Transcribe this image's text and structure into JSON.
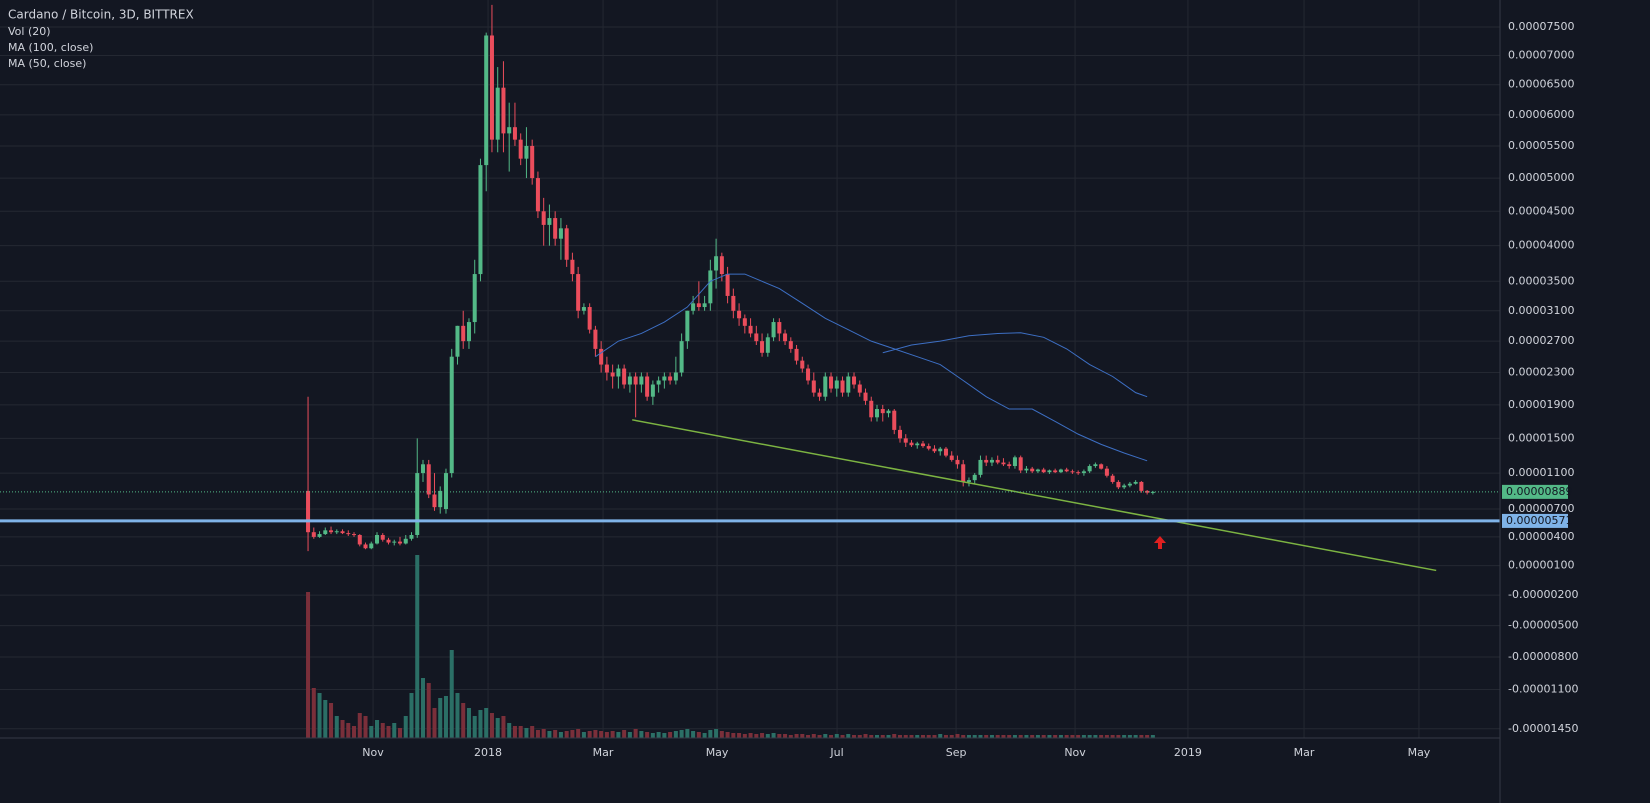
{
  "chart_data": {
    "type": "candlestick",
    "title": "Cardano / Bitcoin, 3D, BITTREX",
    "volume_label": "Vol (20)",
    "up_color": "#53b987",
    "down_color": "#eb4d5c",
    "volume_up_color": "#2b6f66",
    "volume_down_color": "#7a2f3a",
    "grid": true,
    "xlim": [
      -53.6,
      207.4
    ],
    "xticks": [
      {
        "value": 11.31,
        "label": "Nov"
      },
      {
        "value": 31.32,
        "label": "2018"
      },
      {
        "value": 51.33,
        "label": "Mar"
      },
      {
        "value": 71.17,
        "label": "May"
      },
      {
        "value": 92.05,
        "label": "Jul"
      },
      {
        "value": 112.76,
        "label": "Sep"
      },
      {
        "value": 133.46,
        "label": "Nov"
      },
      {
        "value": 153.1,
        "label": "2019"
      },
      {
        "value": 173.3,
        "label": "Mar"
      },
      {
        "value": 193.3,
        "label": "May"
      }
    ],
    "ylim": [
      -1.53e-05,
      7.99e-05
    ],
    "yticks": [
      {
        "value": 7.5e-05,
        "label": "0.00007500"
      },
      {
        "value": 7e-05,
        "label": "0.00007000"
      },
      {
        "value": 6.5e-05,
        "label": "0.00006500"
      },
      {
        "value": 6e-05,
        "label": "0.00006000"
      },
      {
        "value": 5.5e-05,
        "label": "0.00005500"
      },
      {
        "value": 5e-05,
        "label": "0.00005000"
      },
      {
        "value": 4.5e-05,
        "label": "0.00004500"
      },
      {
        "value": 4e-05,
        "label": "0.00004000"
      },
      {
        "value": 3.5e-05,
        "label": "0.00003500"
      },
      {
        "value": 3.1e-05,
        "label": "0.00003100"
      },
      {
        "value": 2.7e-05,
        "label": "0.00002700"
      },
      {
        "value": 2.3e-05,
        "label": "0.00002300"
      },
      {
        "value": 1.9e-05,
        "label": "0.00001900"
      },
      {
        "value": 1.5e-05,
        "label": "0.00001500"
      },
      {
        "value": 1.1e-05,
        "label": "0.00001100"
      },
      {
        "value": 7e-06,
        "label": "0.00000700"
      },
      {
        "value": 4e-06,
        "label": "0.00000400"
      },
      {
        "value": 1e-06,
        "label": "0.00000100"
      },
      {
        "value": -2e-06,
        "label": "-0.00000200"
      },
      {
        "value": -5e-06,
        "label": "-0.00000500"
      },
      {
        "value": -8e-06,
        "label": "-0.00000800"
      },
      {
        "value": -1.1e-05,
        "label": "-0.00001100"
      },
      {
        "value": -1.45e-05,
        "label": "-0.00001450"
      }
    ],
    "ohlc": [
      [
        9e-06,
        2e-05,
        2.5e-06,
        4.5e-06
      ],
      [
        4.5e-06,
        5e-06,
        3.8e-06,
        4e-06
      ],
      [
        4e-06,
        4.6e-06,
        3.9e-06,
        4.3e-06
      ],
      [
        4.3e-06,
        5e-06,
        4.2e-06,
        4.7e-06
      ],
      [
        4.7e-06,
        5.1e-06,
        4.3e-06,
        4.5e-06
      ],
      [
        4.5e-06,
        4.8e-06,
        4.3e-06,
        4.6e-06
      ],
      [
        4.6e-06,
        4.8e-06,
        4.3e-06,
        4.4e-06
      ],
      [
        4.4e-06,
        4.7e-06,
        4.1e-06,
        4.3e-06
      ],
      [
        4.3e-06,
        4.5e-06,
        4e-06,
        4.2e-06
      ],
      [
        4.2e-06,
        4.3e-06,
        3e-06,
        3.2e-06
      ],
      [
        3.2e-06,
        3.4e-06,
        2.7e-06,
        2.8e-06
      ],
      [
        2.8e-06,
        3.5e-06,
        2.7e-06,
        3.3e-06
      ],
      [
        3.3e-06,
        4.5e-06,
        3.2e-06,
        4.2e-06
      ],
      [
        4.2e-06,
        4.4e-06,
        3.5e-06,
        3.7e-06
      ],
      [
        3.7e-06,
        3.9e-06,
        3.2e-06,
        3.4e-06
      ],
      [
        3.4e-06,
        3.7e-06,
        3.1e-06,
        3.5e-06
      ],
      [
        3.5e-06,
        4e-06,
        3.1e-06,
        3.3e-06
      ],
      [
        3.3e-06,
        4.2e-06,
        3.2e-06,
        3.8e-06
      ],
      [
        3.8e-06,
        4.5e-06,
        3.6e-06,
        4.2e-06
      ],
      [
        4.2e-06,
        1.5e-05,
        3.9e-06,
        1.1e-05
      ],
      [
        1.1e-05,
        1.25e-05,
        1e-05,
        1.2e-05
      ],
      [
        1.2e-05,
        1.25e-05,
        8.2e-06,
        8.6e-06
      ],
      [
        8.6e-06,
        1.1e-05,
        6.8e-06,
        7.2e-06
      ],
      [
        7.2e-06,
        9.5e-06,
        6.5e-06,
        9e-06
      ],
      [
        7e-06,
        1.15e-05,
        6.5e-06,
        1.1e-05
      ],
      [
        1.1e-05,
        2.6e-05,
        1.05e-05,
        2.5e-05
      ],
      [
        2.5e-05,
        2.9e-05,
        2.4e-05,
        2.9e-05
      ],
      [
        2.9e-05,
        3.1e-05,
        2.6e-05,
        2.7e-05
      ],
      [
        2.7e-05,
        3e-05,
        2.6e-05,
        2.95e-05
      ],
      [
        2.95e-05,
        3.8e-05,
        2.8e-05,
        3.6e-05
      ],
      [
        3.6e-05,
        5.3e-05,
        3.5e-05,
        5.2e-05
      ],
      [
        5.2e-05,
        7.4e-05,
        4.8e-05,
        7.35e-05
      ],
      [
        7.35e-05,
        7.9e-05,
        5.4e-05,
        5.6e-05
      ],
      [
        5.6e-05,
        6.8e-05,
        5.4e-05,
        6.45e-05
      ],
      [
        6.45e-05,
        6.9e-05,
        5.4e-05,
        5.7e-05
      ],
      [
        5.7e-05,
        6.2e-05,
        5.1e-05,
        5.8e-05
      ],
      [
        5.8e-05,
        6.2e-05,
        5.5e-05,
        5.6e-05
      ],
      [
        5.6e-05,
        5.7e-05,
        5.2e-05,
        5.3e-05
      ],
      [
        5.3e-05,
        5.8e-05,
        5e-05,
        5.5e-05
      ],
      [
        5.5e-05,
        5.6e-05,
        4.9e-05,
        5e-05
      ],
      [
        5e-05,
        5.1e-05,
        4.4e-05,
        4.5e-05
      ],
      [
        4.5e-05,
        4.7e-05,
        4e-05,
        4.3e-05
      ],
      [
        4.3e-05,
        4.6e-05,
        4e-05,
        4.4e-05
      ],
      [
        4.4e-05,
        4.5e-05,
        4e-05,
        4.1e-05
      ],
      [
        4.1e-05,
        4.4e-05,
        3.8e-05,
        4.25e-05
      ],
      [
        4.25e-05,
        4.3e-05,
        3.7e-05,
        3.8e-05
      ],
      [
        3.8e-05,
        3.9e-05,
        3.5e-05,
        3.6e-05
      ],
      [
        3.6e-05,
        3.7e-05,
        3e-05,
        3.1e-05
      ],
      [
        3.1e-05,
        3.2e-05,
        3.05e-05,
        3.15e-05
      ],
      [
        3.15e-05,
        3.2e-05,
        2.8e-05,
        2.85e-05
      ],
      [
        2.85e-05,
        2.9e-05,
        2.5e-05,
        2.6e-05
      ],
      [
        2.6e-05,
        2.7e-05,
        2.3e-05,
        2.4e-05
      ],
      [
        2.4e-05,
        2.5e-05,
        2.2e-05,
        2.3e-05
      ],
      [
        2.3e-05,
        2.4e-05,
        2.1e-05,
        2.25e-05
      ],
      [
        2.25e-05,
        2.4e-05,
        2.1e-05,
        2.35e-05
      ],
      [
        2.35e-05,
        2.4e-05,
        2.1e-05,
        2.15e-05
      ],
      [
        2.15e-05,
        2.3e-05,
        2.05e-05,
        2.25e-05
      ],
      [
        2.25e-05,
        2.3e-05,
        1.75e-05,
        2.15e-05
      ],
      [
        2.15e-05,
        2.3e-05,
        2.05e-05,
        2.25e-05
      ],
      [
        2.25e-05,
        2.3e-05,
        1.95e-05,
        2e-05
      ],
      [
        2e-05,
        2.2e-05,
        1.9e-05,
        2.15e-05
      ],
      [
        2.15e-05,
        2.25e-05,
        2.05e-05,
        2.2e-05
      ],
      [
        2.2e-05,
        2.3e-05,
        2.1e-05,
        2.25e-05
      ],
      [
        2.25e-05,
        2.3e-05,
        2.15e-05,
        2.2e-05
      ],
      [
        2.2e-05,
        2.5e-05,
        2.15e-05,
        2.3e-05
      ],
      [
        2.3e-05,
        2.8e-05,
        2.25e-05,
        2.7e-05
      ],
      [
        2.7e-05,
        3.1e-05,
        2.6e-05,
        3.1e-05
      ],
      [
        3.1e-05,
        3.3e-05,
        3.05e-05,
        3.2e-05
      ],
      [
        3.2e-05,
        3.5e-05,
        3.1e-05,
        3.15e-05
      ],
      [
        3.15e-05,
        3.3e-05,
        3.1e-05,
        3.2e-05
      ],
      [
        3.2e-05,
        3.8e-05,
        3.1e-05,
        3.65e-05
      ],
      [
        3.65e-05,
        4.1e-05,
        3.4e-05,
        3.85e-05
      ],
      [
        3.85e-05,
        3.9e-05,
        3.5e-05,
        3.6e-05
      ],
      [
        3.6e-05,
        3.7e-05,
        3.2e-05,
        3.3e-05
      ],
      [
        3.3e-05,
        3.4e-05,
        3e-05,
        3.1e-05
      ],
      [
        3.1e-05,
        3.2e-05,
        2.9e-05,
        3e-05
      ],
      [
        3e-05,
        3.05e-05,
        2.8e-05,
        2.9e-05
      ],
      [
        2.9e-05,
        3e-05,
        2.75e-05,
        2.8e-05
      ],
      [
        2.8e-05,
        2.9e-05,
        2.65e-05,
        2.7e-05
      ],
      [
        2.7e-05,
        2.8e-05,
        2.5e-05,
        2.55e-05
      ],
      [
        2.55e-05,
        2.8e-05,
        2.5e-05,
        2.75e-05
      ],
      [
        2.75e-05,
        3e-05,
        2.7e-05,
        2.95e-05
      ],
      [
        2.95e-05,
        3e-05,
        2.7e-05,
        2.8e-05
      ],
      [
        2.8e-05,
        2.85e-05,
        2.65e-05,
        2.7e-05
      ],
      [
        2.7e-05,
        2.75e-05,
        2.55e-05,
        2.6e-05
      ],
      [
        2.6e-05,
        2.65e-05,
        2.4e-05,
        2.45e-05
      ],
      [
        2.45e-05,
        2.5e-05,
        2.3e-05,
        2.35e-05
      ],
      [
        2.35e-05,
        2.4e-05,
        2.15e-05,
        2.2e-05
      ],
      [
        2.2e-05,
        2.3e-05,
        2e-05,
        2.05e-05
      ],
      [
        2.05e-05,
        2.1e-05,
        1.95e-05,
        2e-05
      ],
      [
        2e-05,
        2.3e-05,
        1.95e-05,
        2.25e-05
      ],
      [
        2.25e-05,
        2.3e-05,
        2.05e-05,
        2.1e-05
      ],
      [
        2.1e-05,
        2.25e-05,
        2e-05,
        2.2e-05
      ],
      [
        2.2e-05,
        2.25e-05,
        2e-05,
        2.05e-05
      ],
      [
        2.05e-05,
        2.3e-05,
        2e-05,
        2.25e-05
      ],
      [
        2.25e-05,
        2.3e-05,
        2.1e-05,
        2.15e-05
      ],
      [
        2.15e-05,
        2.2e-05,
        2e-05,
        2.05e-05
      ],
      [
        2.05e-05,
        2.1e-05,
        1.9e-05,
        1.95e-05
      ],
      [
        1.95e-05,
        2e-05,
        1.7e-05,
        1.75e-05
      ],
      [
        1.75e-05,
        1.9e-05,
        1.7e-05,
        1.85e-05
      ],
      [
        1.85e-05,
        1.9e-05,
        1.7e-05,
        1.8e-05
      ],
      [
        1.8e-05,
        1.85e-05,
        1.75e-05,
        1.83e-05
      ],
      [
        1.83e-05,
        1.85e-05,
        1.55e-05,
        1.6e-05
      ],
      [
        1.6e-05,
        1.65e-05,
        1.45e-05,
        1.5e-05
      ],
      [
        1.5e-05,
        1.55e-05,
        1.4e-05,
        1.45e-05
      ],
      [
        1.45e-05,
        1.48e-05,
        1.4e-05,
        1.42e-05
      ],
      [
        1.42e-05,
        1.46e-05,
        1.38e-05,
        1.44e-05
      ],
      [
        1.44e-05,
        1.47e-05,
        1.39e-05,
        1.41e-05
      ],
      [
        1.41e-05,
        1.44e-05,
        1.36e-05,
        1.38e-05
      ],
      [
        1.38e-05,
        1.42e-05,
        1.33e-05,
        1.35e-05
      ],
      [
        1.35e-05,
        1.4e-05,
        1.3e-05,
        1.38e-05
      ],
      [
        1.38e-05,
        1.4e-05,
        1.28e-05,
        1.3e-05
      ],
      [
        1.3e-05,
        1.35e-05,
        1.23e-05,
        1.25e-05
      ],
      [
        1.25e-05,
        1.3e-05,
        1.15e-05,
        1.2e-05
      ],
      [
        1.2e-05,
        1.25e-05,
        9.5e-06,
        1e-05
      ],
      [
        1e-05,
        1.05e-05,
        9.5e-06,
        1.02e-05
      ],
      [
        1.02e-05,
        1.1e-05,
        9.8e-06,
        1.08e-05
      ],
      [
        1.08e-05,
        1.3e-05,
        1.05e-05,
        1.25e-05
      ],
      [
        1.25e-05,
        1.3e-05,
        1.18e-05,
        1.22e-05
      ],
      [
        1.22e-05,
        1.28e-05,
        1.18e-05,
        1.25e-05
      ],
      [
        1.25e-05,
        1.3e-05,
        1.2e-05,
        1.22e-05
      ],
      [
        1.22e-05,
        1.27e-05,
        1.18e-05,
        1.2e-05
      ],
      [
        1.2e-05,
        1.23e-05,
        1.15e-05,
        1.18e-05
      ],
      [
        1.18e-05,
        1.3e-05,
        1.15e-05,
        1.28e-05
      ],
      [
        1.28e-05,
        1.3e-05,
        1.1e-05,
        1.13e-05
      ],
      [
        1.13e-05,
        1.18e-05,
        1.1e-05,
        1.15e-05
      ],
      [
        1.15e-05,
        1.17e-05,
        1.1e-05,
        1.12e-05
      ],
      [
        1.12e-05,
        1.15e-05,
        1.1e-05,
        1.14e-05
      ],
      [
        1.14e-05,
        1.16e-05,
        1.1e-05,
        1.11e-05
      ],
      [
        1.11e-05,
        1.14e-05,
        1.09e-05,
        1.13e-05
      ],
      [
        1.13e-05,
        1.15e-05,
        1.1e-05,
        1.11e-05
      ],
      [
        1.11e-05,
        1.15e-05,
        1.1e-05,
        1.14e-05
      ],
      [
        1.14e-05,
        1.16e-05,
        1.11e-05,
        1.12e-05
      ],
      [
        1.12e-05,
        1.14e-05,
        1.09e-05,
        1.11e-05
      ],
      [
        1.11e-05,
        1.13e-05,
        1.08e-05,
        1.1e-05
      ],
      [
        1.1e-05,
        1.14e-05,
        1.07e-05,
        1.12e-05
      ],
      [
        1.12e-05,
        1.2e-05,
        1.1e-05,
        1.18e-05
      ],
      [
        1.18e-05,
        1.22e-05,
        1.16e-05,
        1.2e-05
      ],
      [
        1.2e-05,
        1.21e-05,
        1.14e-05,
        1.15e-05
      ],
      [
        1.15e-05,
        1.18e-05,
        1.05e-05,
        1.07e-05
      ],
      [
        1.07e-05,
        1.09e-05,
        9.8e-06,
        1e-05
      ],
      [
        1e-05,
        1.02e-05,
        9.2e-06,
        9.4e-06
      ],
      [
        9.4e-06,
        9.8e-06,
        9.2e-06,
        9.6e-06
      ],
      [
        9.6e-06,
        1e-05,
        9.4e-06,
        9.8e-06
      ],
      [
        9.8e-06,
        1.02e-05,
        9.7e-06,
        1e-05
      ],
      [
        1e-05,
        1.01e-05,
        8.8e-06,
        9e-06
      ],
      [
        9e-06,
        9.1e-06,
        8.6e-06,
        8.8e-06
      ],
      [
        8.8e-06,
        9e-06,
        8.6e-06,
        8.89e-06
      ]
    ],
    "volume": [
      146,
      50,
      45,
      38,
      35,
      22,
      18,
      15,
      12,
      25,
      22,
      12,
      18,
      15,
      12,
      15,
      10,
      22,
      45,
      183,
      60,
      55,
      30,
      40,
      42,
      88,
      45,
      35,
      30,
      22,
      28,
      30,
      25,
      20,
      22,
      15,
      12,
      12,
      10,
      12,
      8,
      9,
      7,
      8,
      6,
      7,
      8,
      9,
      6,
      7,
      8,
      7,
      6,
      7,
      6,
      8,
      6,
      9,
      7,
      6,
      5,
      6,
      5,
      6,
      7,
      8,
      9,
      7,
      6,
      5,
      8,
      9,
      7,
      6,
      5,
      5,
      4,
      5,
      4,
      5,
      4,
      5,
      4,
      4,
      3,
      4,
      4,
      3,
      4,
      3,
      4,
      3,
      4,
      3,
      4,
      3,
      3,
      4,
      3,
      3,
      3,
      3,
      4,
      3,
      3,
      3,
      3,
      3,
      3,
      3,
      4,
      3,
      3,
      4,
      3,
      3,
      3,
      3,
      3,
      3,
      3,
      3,
      3,
      3,
      3,
      3,
      3,
      3,
      3,
      3,
      3,
      3,
      3,
      3,
      3,
      3,
      3,
      3,
      3,
      3,
      3,
      3,
      3,
      3,
      3,
      3,
      3,
      3
    ],
    "lines": [
      {
        "label": "MA (100, close)",
        "color": "#3d6fc4",
        "x": [
          100,
          105,
          110,
          115,
          120,
          124,
          128,
          132,
          136,
          140,
          144,
          146
        ],
        "values": [
          2.55e-05,
          2.65e-05,
          2.7e-05,
          2.77e-05,
          2.8e-05,
          2.81e-05,
          2.75e-05,
          2.6e-05,
          2.4e-05,
          2.25e-05,
          2.05e-05,
          2e-05
        ]
      },
      {
        "label": "MA (50, close)",
        "color": "#3d6fc4",
        "x": [
          50,
          54,
          58,
          62,
          66,
          70,
          73,
          76,
          79,
          82,
          86,
          90,
          94,
          98,
          102,
          106,
          110,
          114,
          118,
          122,
          126,
          130,
          134,
          138,
          142,
          146
        ],
        "values": [
          2.5e-05,
          2.7e-05,
          2.8e-05,
          2.95e-05,
          3.15e-05,
          3.5e-05,
          3.6e-05,
          3.6e-05,
          3.5e-05,
          3.4e-05,
          3.2e-05,
          3e-05,
          2.85e-05,
          2.7e-05,
          2.6e-05,
          2.5e-05,
          2.4e-05,
          2.2e-05,
          2e-05,
          1.85e-05,
          1.85e-05,
          1.7e-05,
          1.55e-05,
          1.43e-05,
          1.33e-05,
          1.24e-05
        ]
      }
    ],
    "trendline": {
      "color": "#7cb342",
      "x": [
        56.4,
        196.3
      ],
      "values": [
        1.72e-05,
        5e-07
      ]
    },
    "price_lines": [
      {
        "value": 8.89e-06,
        "label": "0.00000889",
        "color": "#53b987",
        "style": "dotted"
      },
      {
        "value": 5.71e-06,
        "label": "0.00000571",
        "color": "#7fb3e8",
        "style": "solid"
      }
    ]
  }
}
